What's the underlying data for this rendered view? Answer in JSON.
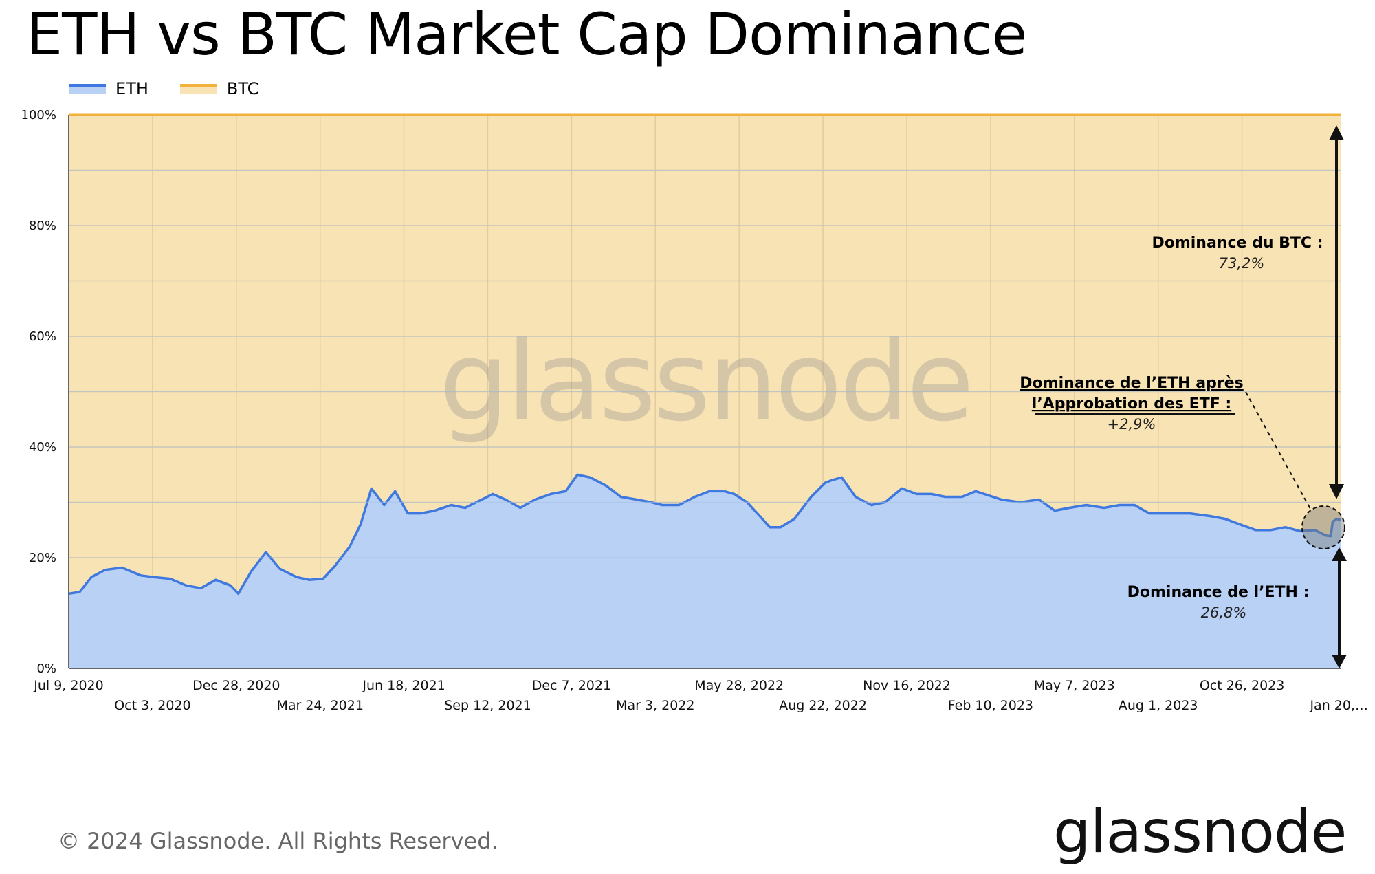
{
  "title": "ETH vs BTC Market Cap Dominance",
  "legend": {
    "eth_label": "ETH",
    "btc_label": "BTC"
  },
  "watermark": "glassnode",
  "footer": {
    "copyright": "© 2024 Glassnode. All Rights Reserved.",
    "logo": "glassnode"
  },
  "annotations": {
    "btc_title": "Dominance du BTC :",
    "btc_value": "73,2%",
    "etf_title_line1": "Dominance de l’ETH après",
    "etf_title_line2": "l’Approbation des ETF :",
    "etf_value": "+2,9%",
    "eth_title": "Dominance de l’ETH :",
    "eth_value": "26,8%"
  },
  "colors": {
    "eth_line": "#3f78de",
    "eth_fill": "#b9d1f5",
    "btc_line": "#f3b23c",
    "btc_fill": "#f8e3b5",
    "grid": "#e3cc9c"
  },
  "chart_data": {
    "type": "area",
    "title": "ETH vs BTC Market Cap Dominance",
    "stacked": true,
    "x_start": "Jul 9, 2020",
    "x_end": "Jan 20, 2024",
    "ylim": [
      0,
      100
    ],
    "y_unit": "%",
    "y_ticks": [
      "0%",
      "20%",
      "40%",
      "60%",
      "80%",
      "100%"
    ],
    "x_tick_labels": [
      "Jul 9, 2020",
      "Oct 3, 2020",
      "Dec 28, 2020",
      "Mar 24, 2021",
      "Jun 18, 2021",
      "Sep 12, 2021",
      "Dec 7, 2021",
      "Mar 3, 2022",
      "May 28, 2022",
      "Aug 22, 2022",
      "Nov 16, 2022",
      "Feb 10, 2023",
      "May 7, 2023",
      "Aug 1, 2023",
      "Oct 26, 2023",
      "Jan 20,…"
    ],
    "grid": true,
    "legend_position": "top-left",
    "series": [
      {
        "name": "ETH",
        "x": [
          "2020-07-09",
          "2020-07-20",
          "2020-08-01",
          "2020-08-15",
          "2020-09-01",
          "2020-09-20",
          "2020-10-03",
          "2020-10-20",
          "2020-11-05",
          "2020-11-20",
          "2020-12-05",
          "2020-12-20",
          "2020-12-28",
          "2021-01-10",
          "2021-01-25",
          "2021-02-08",
          "2021-02-25",
          "2021-03-10",
          "2021-03-24",
          "2021-04-05",
          "2021-04-20",
          "2021-05-01",
          "2021-05-12",
          "2021-05-25",
          "2021-06-05",
          "2021-06-18",
          "2021-07-01",
          "2021-07-15",
          "2021-08-01",
          "2021-08-15",
          "2021-09-01",
          "2021-09-12",
          "2021-09-25",
          "2021-10-10",
          "2021-10-25",
          "2021-11-10",
          "2021-11-25",
          "2021-12-07",
          "2021-12-20",
          "2022-01-05",
          "2022-01-20",
          "2022-02-05",
          "2022-02-20",
          "2022-03-03",
          "2022-03-20",
          "2022-04-05",
          "2022-04-20",
          "2022-05-05",
          "2022-05-15",
          "2022-05-28",
          "2022-06-10",
          "2022-06-20",
          "2022-07-01",
          "2022-07-15",
          "2022-08-01",
          "2022-08-15",
          "2022-08-22",
          "2022-09-01",
          "2022-09-15",
          "2022-10-01",
          "2022-10-15",
          "2022-11-01",
          "2022-11-16",
          "2022-12-01",
          "2022-12-15",
          "2023-01-01",
          "2023-01-15",
          "2023-02-10",
          "2023-03-01",
          "2023-03-20",
          "2023-04-05",
          "2023-04-20",
          "2023-05-07",
          "2023-05-25",
          "2023-06-10",
          "2023-06-25",
          "2023-07-10",
          "2023-08-01",
          "2023-08-20",
          "2023-09-10",
          "2023-09-25",
          "2023-10-10",
          "2023-10-26",
          "2023-11-10",
          "2023-11-25",
          "2023-12-10",
          "2023-12-25",
          "2024-01-05",
          "2024-01-10",
          "2024-01-12",
          "2024-01-16",
          "2024-01-20"
        ],
        "values": [
          13.5,
          13.8,
          16.5,
          17.8,
          18.2,
          16.8,
          16.5,
          16.2,
          15.0,
          14.5,
          16.0,
          15.0,
          13.5,
          17.5,
          21.0,
          18.0,
          16.5,
          16.0,
          16.2,
          18.5,
          22.0,
          26.0,
          32.5,
          29.5,
          32.0,
          28.0,
          28.0,
          28.5,
          29.5,
          29.0,
          30.5,
          31.5,
          30.5,
          29.0,
          30.5,
          31.5,
          32.0,
          35.0,
          34.5,
          33.0,
          31.0,
          30.5,
          30.0,
          29.5,
          29.5,
          31.0,
          32.0,
          32.0,
          31.5,
          30.0,
          27.5,
          25.5,
          25.5,
          27.0,
          31.0,
          33.5,
          34.0,
          34.5,
          31.0,
          29.5,
          30.0,
          32.5,
          31.5,
          31.5,
          31.0,
          31.0,
          32.0,
          30.5,
          30.0,
          30.5,
          28.5,
          29.0,
          29.5,
          29.0,
          29.5,
          29.5,
          28.0,
          28.0,
          28.0,
          27.5,
          27.0,
          26.0,
          25.0,
          25.0,
          25.5,
          24.8,
          25.0,
          24.0,
          23.9,
          26.5,
          27.0,
          26.8
        ]
      },
      {
        "name": "BTC",
        "values_note_free": true,
        "values": "100 minus ETH"
      }
    ]
  }
}
